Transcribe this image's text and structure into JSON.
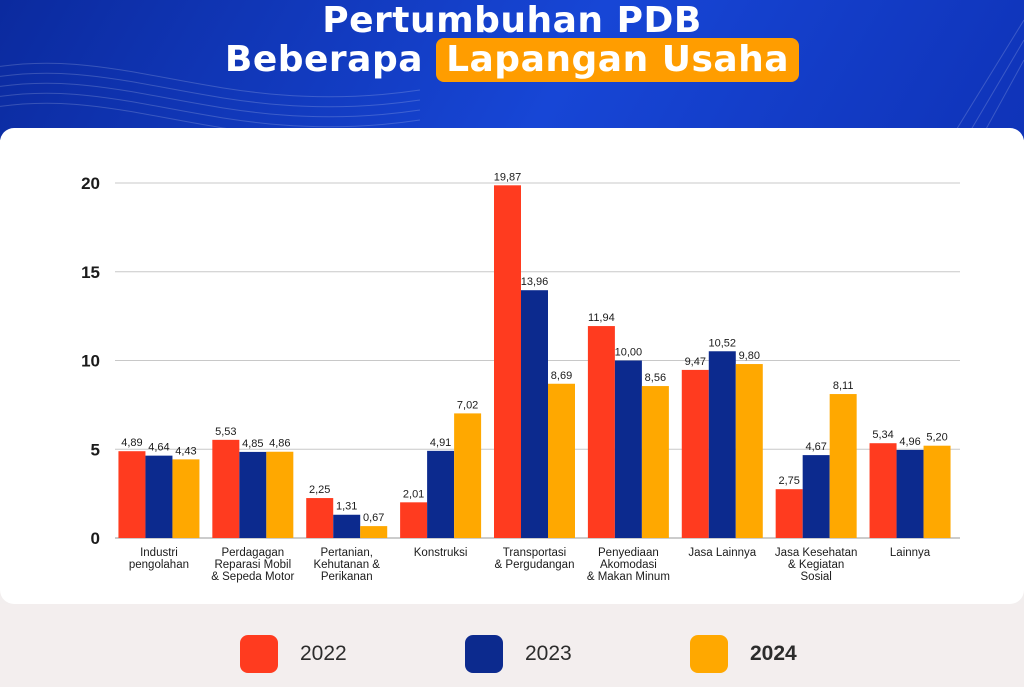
{
  "title": {
    "line1": "Pertumbuhan PDB",
    "line2_prefix": "Beberapa",
    "line2_highlight": "Lapangan Usaha"
  },
  "colors": {
    "2022": "#ff3b1f",
    "2023": "#0c2a8e",
    "2024": "#ffa800",
    "header": "#1746d6",
    "highlight": "#ff9d00"
  },
  "chart_data": {
    "type": "bar",
    "title": "Pertumbuhan PDB Beberapa Lapangan Usaha",
    "xlabel": "",
    "ylabel": "",
    "ylim": [
      0,
      20
    ],
    "yticks": [
      0,
      5,
      10,
      15,
      20
    ],
    "grid": true,
    "legend_position": "bottom",
    "categories": [
      [
        "Industri",
        "pengolahan"
      ],
      [
        "Perdagagan",
        "Reparasi Mobil",
        "& Sepeda Motor"
      ],
      [
        "Pertanian,",
        "Kehutanan &",
        "Perikanan"
      ],
      [
        "Konstruksi"
      ],
      [
        "Transportasi",
        "& Pergudangan"
      ],
      [
        "Penyediaan",
        "Akomodasi",
        "& Makan Minum"
      ],
      [
        "Jasa Lainnya"
      ],
      [
        "Jasa Kesehatan",
        "& Kegiatan",
        "Sosial"
      ],
      [
        "Lainnya"
      ]
    ],
    "series": [
      {
        "name": "2022",
        "color": "#ff3b1f",
        "values": [
          4.89,
          5.53,
          2.25,
          2.01,
          19.87,
          11.94,
          9.47,
          2.75,
          5.34
        ],
        "labels": [
          "4,89",
          "5,53",
          "2,25",
          "2,01",
          "19,87",
          "11,94",
          "9,47",
          "2,75",
          "5,34"
        ]
      },
      {
        "name": "2023",
        "color": "#0c2a8e",
        "values": [
          4.64,
          4.85,
          1.31,
          4.91,
          13.96,
          10.0,
          10.52,
          4.67,
          4.96
        ],
        "labels": [
          "4,64",
          "4,85",
          "1,31",
          "4,91",
          "13,96",
          "10,00",
          "10,52",
          "4,67",
          "4,96"
        ]
      },
      {
        "name": "2024",
        "color": "#ffa800",
        "values": [
          4.43,
          4.86,
          0.67,
          7.02,
          8.69,
          8.56,
          9.8,
          8.11,
          5.2
        ],
        "labels": [
          "4,43",
          "4,86",
          "0,67",
          "7,02",
          "8,69",
          "8,56",
          "9,80",
          "8,11",
          "5,20"
        ]
      }
    ]
  },
  "legend": [
    {
      "label": "2022",
      "color": "#ff3b1f"
    },
    {
      "label": "2023",
      "color": "#0c2a8e"
    },
    {
      "label": "2024",
      "color": "#ffa800"
    }
  ]
}
